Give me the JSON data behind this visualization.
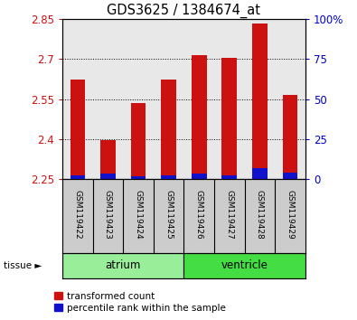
{
  "title": "GDS3625 / 1384674_at",
  "samples": [
    "GSM119422",
    "GSM119423",
    "GSM119424",
    "GSM119425",
    "GSM119426",
    "GSM119427",
    "GSM119428",
    "GSM119429"
  ],
  "transformed_counts": [
    2.625,
    2.395,
    2.535,
    2.625,
    2.715,
    2.705,
    2.835,
    2.565
  ],
  "percentile_ranks": [
    3,
    4,
    2,
    3,
    4,
    3,
    8,
    5
  ],
  "ymin": 2.25,
  "ymax": 2.85,
  "yticks": [
    2.25,
    2.4,
    2.55,
    2.7,
    2.85
  ],
  "ytick_labels": [
    "2.25",
    "2.4",
    "2.55",
    "2.7",
    "2.85"
  ],
  "y2ticks": [
    0,
    25,
    50,
    75,
    100
  ],
  "y2tick_labels": [
    "0",
    "25",
    "50",
    "75",
    "100%"
  ],
  "bar_color": "#cc1111",
  "percentile_color": "#1111cc",
  "tissue_groups": [
    {
      "name": "atrium",
      "indices": [
        0,
        1,
        2,
        3
      ],
      "color": "#99ee99"
    },
    {
      "name": "ventricle",
      "indices": [
        4,
        5,
        6,
        7
      ],
      "color": "#44dd44"
    }
  ],
  "tissue_label": "tissue",
  "left_tick_color": "#cc1111",
  "right_tick_color": "#0000cc",
  "plot_bg_color": "#e8e8e8",
  "bar_width": 0.5,
  "base_value": 2.25,
  "percentile_scale": 0.005
}
